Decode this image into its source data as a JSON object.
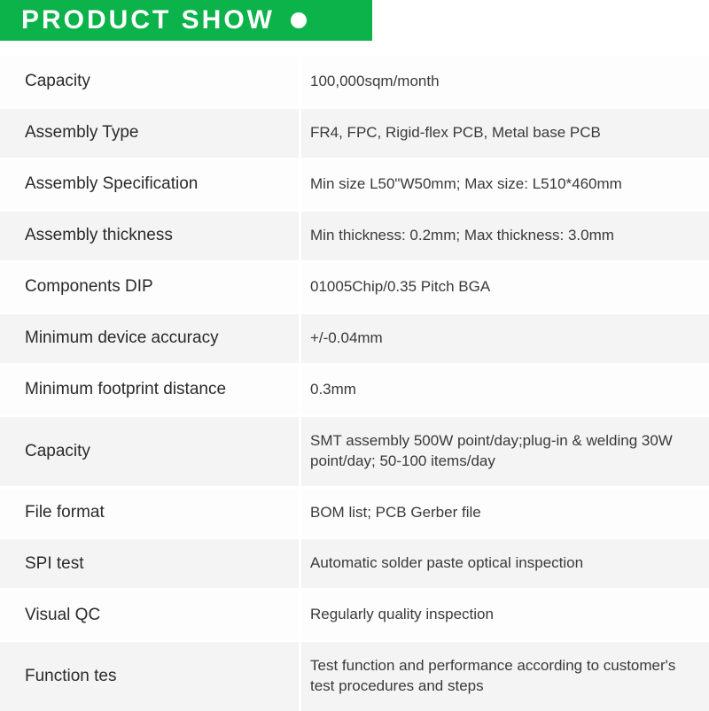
{
  "header": {
    "title": "PRODUCT SHOW",
    "background_color": "#0bb34a",
    "text_color": "#ffffff",
    "dot_color": "#ffffff"
  },
  "table": {
    "label_color": "#2a2a2a",
    "value_color": "#3a3a3a",
    "row_alt_bg": "#f3f4f3",
    "row_bg": "#fcfdfc",
    "rows": [
      {
        "label": "Capacity",
        "value": "100,000sqm/month"
      },
      {
        "label": "Assembly Type",
        "value": "FR4, FPC, Rigid-flex PCB, Metal base PCB"
      },
      {
        "label": "Assembly Specification",
        "value": "Min size L50\"W50mm; Max size: L510*460mm"
      },
      {
        "label": "Assembly thickness",
        "value": "Min thickness: 0.2mm; Max thickness: 3.0mm"
      },
      {
        "label": "Components DIP",
        "value": "01005Chip/0.35 Pitch BGA"
      },
      {
        "label": "Minimum device accuracy",
        "value": "+/-0.04mm"
      },
      {
        "label": "Minimum footprint distance",
        "value": "0.3mm"
      },
      {
        "label": "Capacity",
        "value": "SMT assembly 500W point/day;plug-in & welding 30W point/day; 50-100 items/day",
        "tall": true
      },
      {
        "label": "File format",
        "value": "BOM list; PCB Gerber file"
      },
      {
        "label": "SPI test",
        "value": "Automatic solder paste optical inspection"
      },
      {
        "label": "Visual QC",
        "value": "Regularly quality inspection"
      },
      {
        "label": "Function tes",
        "value": "Test function and performance according to  customer's test procedures and steps",
        "tall": true
      }
    ]
  }
}
